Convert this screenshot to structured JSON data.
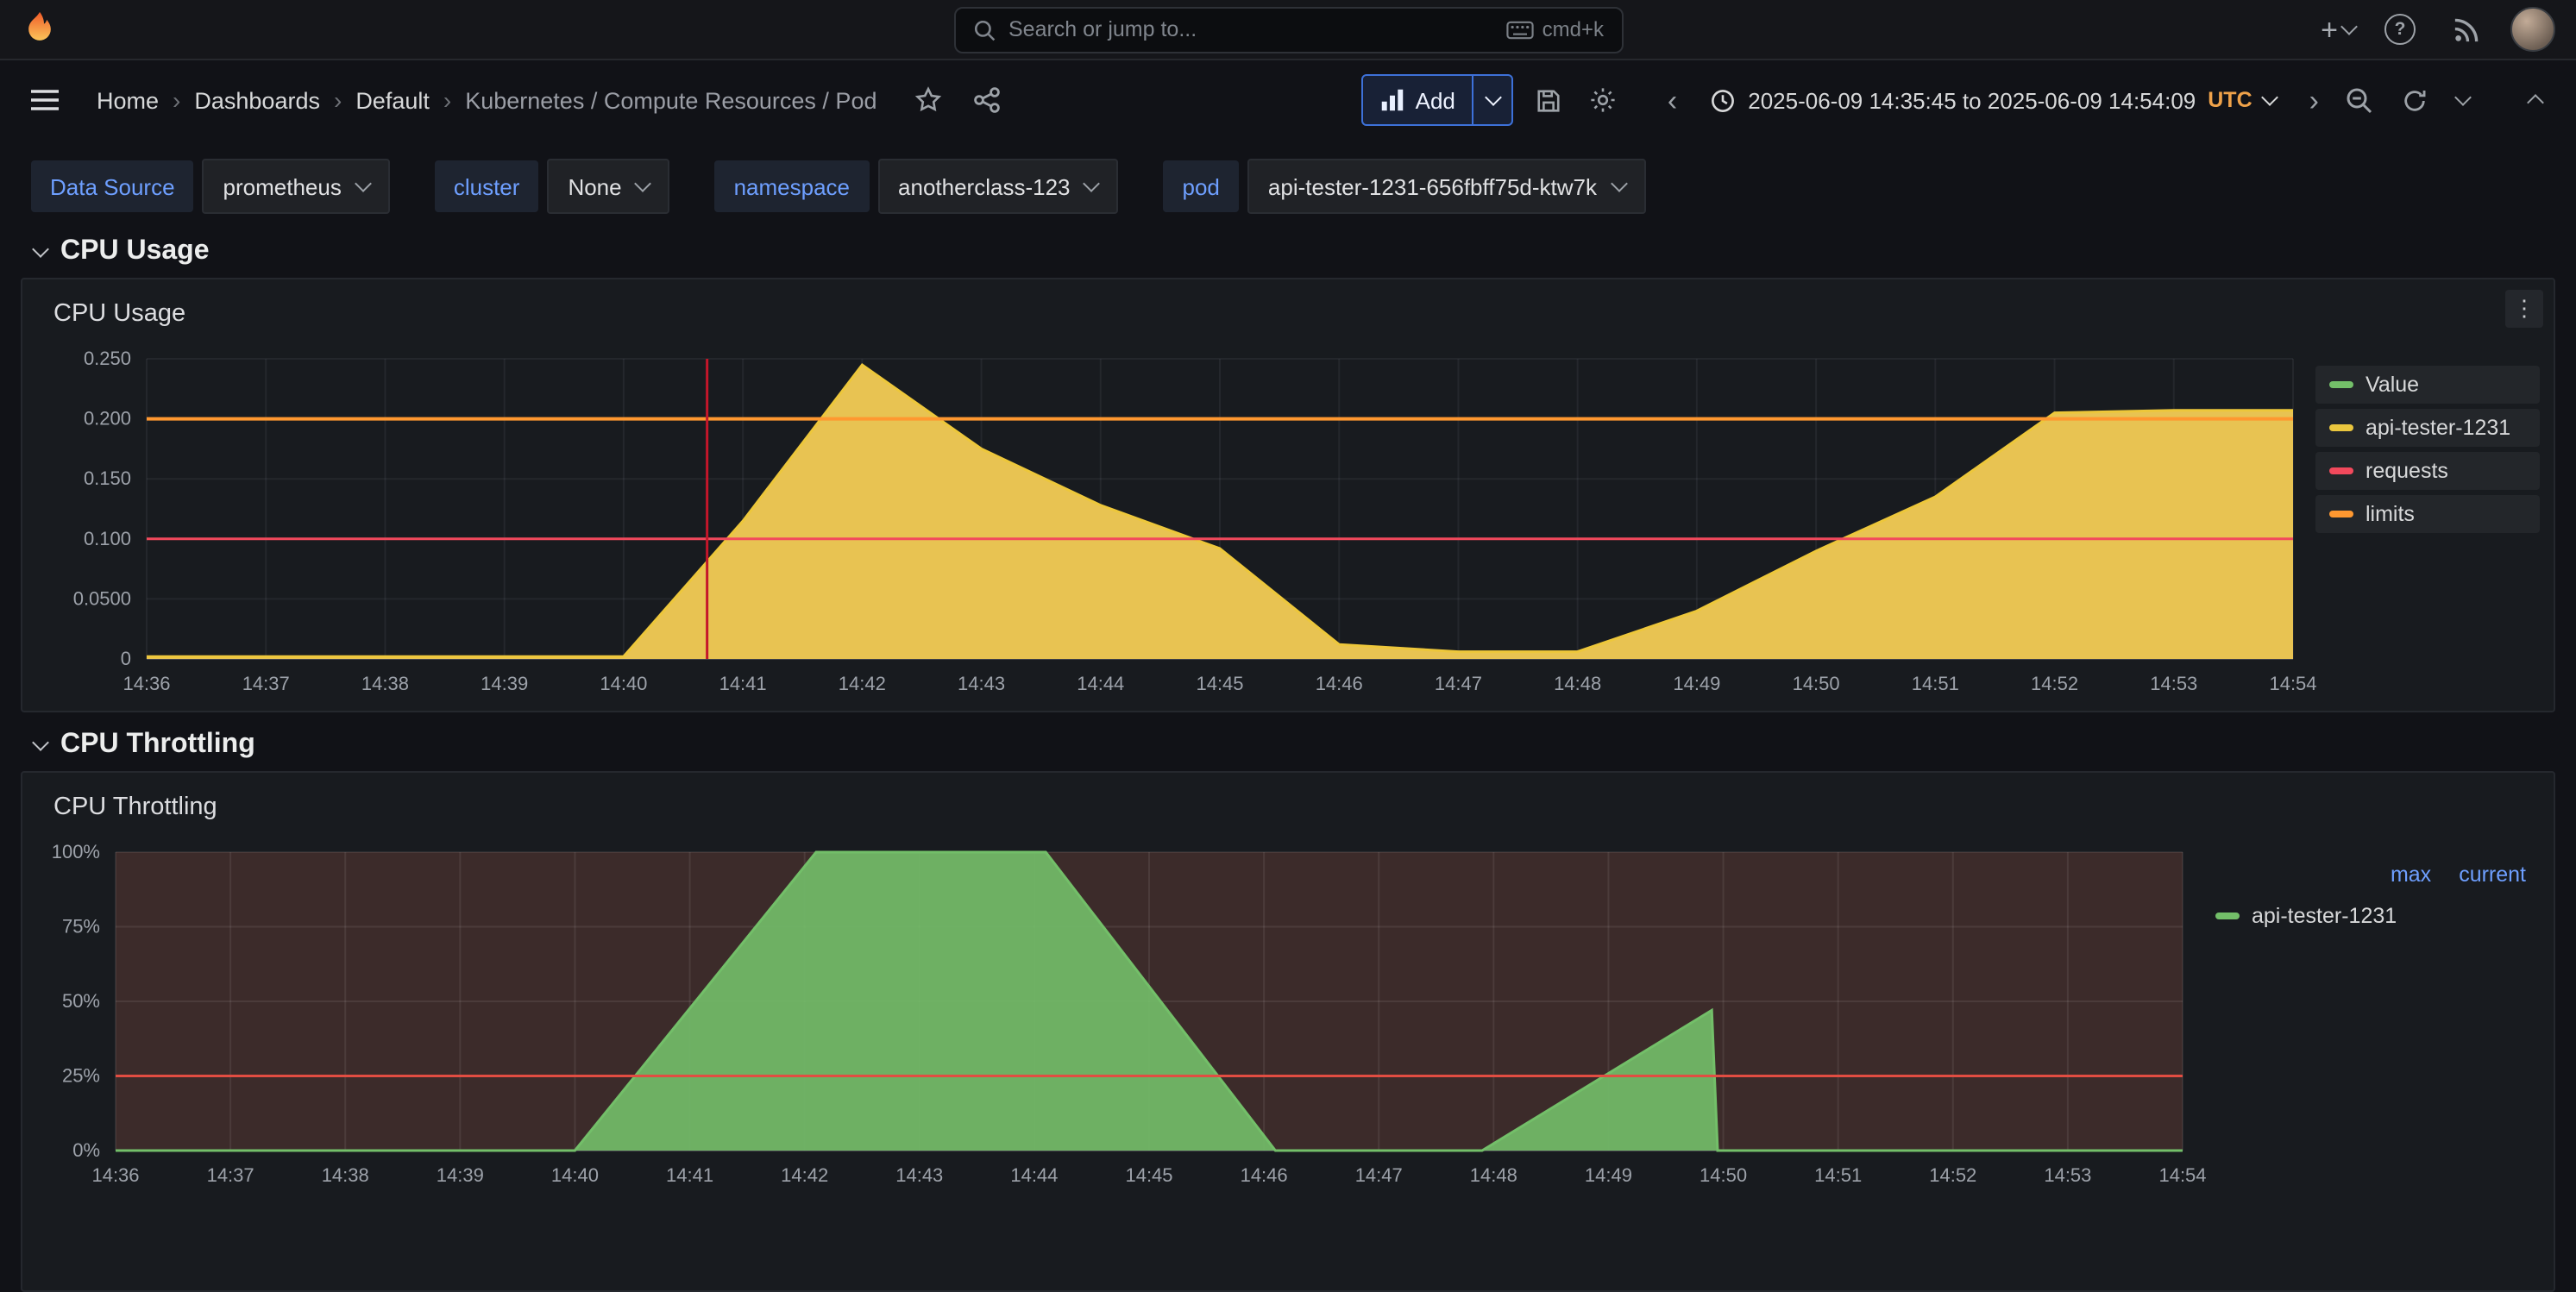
{
  "topbar": {
    "search_placeholder": "Search or jump to...",
    "search_shortcut": "cmd+k"
  },
  "breadcrumb": {
    "items": [
      "Home",
      "Dashboards",
      "Default",
      "Kubernetes / Compute Resources / Pod"
    ]
  },
  "toolbar": {
    "add_label": "Add",
    "time_range": "2025-06-09 14:35:45 to 2025-06-09 14:54:09",
    "timezone": "UTC"
  },
  "filters": [
    {
      "label": "Data Source",
      "value": "prometheus"
    },
    {
      "label": "cluster",
      "value": "None"
    },
    {
      "label": "namespace",
      "value": "anotherclass-123"
    },
    {
      "label": "pod",
      "value": "api-tester-1231-656fbff75d-ktw7k"
    }
  ],
  "sections": [
    {
      "title": "CPU Usage"
    },
    {
      "title": "CPU Throttling"
    }
  ],
  "panels": [
    {
      "title": "CPU Usage",
      "legend": [
        {
          "label": "Value",
          "color": "#73bf69"
        },
        {
          "label": "api-tester-1231",
          "color": "#eac63e"
        },
        {
          "label": "requests",
          "color": "#f2495c"
        },
        {
          "label": "limits",
          "color": "#ff9830"
        }
      ]
    },
    {
      "title": "CPU Throttling",
      "legend_headers": [
        "max",
        "current"
      ],
      "legend": [
        {
          "label": "api-tester-1231",
          "color": "#73bf69"
        }
      ]
    }
  ],
  "colors": {
    "accent_blue": "#6e9fff",
    "add_button_border": "#3d71d9",
    "series_yellow": "#eac63e",
    "series_green": "#73bf69",
    "requests_red": "#f2495c",
    "limits_orange": "#ff9830",
    "annotation_red": "#c4162a",
    "throttle_threshold": "#e24d42",
    "throttle_plot_bg": "#3c2b2a",
    "panel_bg": "#181b1f",
    "page_bg": "#111217"
  },
  "chart_data": [
    {
      "type": "area",
      "title": "CPU Usage",
      "x_ticks": [
        "14:36",
        "14:37",
        "14:38",
        "14:39",
        "14:40",
        "14:41",
        "14:42",
        "14:43",
        "14:44",
        "14:45",
        "14:46",
        "14:47",
        "14:48",
        "14:49",
        "14:50",
        "14:51",
        "14:52",
        "14:53",
        "14:54"
      ],
      "x_tick_values": [
        36,
        37,
        38,
        39,
        40,
        41,
        42,
        43,
        44,
        45,
        46,
        47,
        48,
        49,
        50,
        51,
        52,
        53,
        54
      ],
      "x_range": [
        36,
        54
      ],
      "y_range": [
        0,
        0.25
      ],
      "y_ticks": [
        {
          "v": 0,
          "label": "0"
        },
        {
          "v": 0.05,
          "label": "0.0500"
        },
        {
          "v": 0.1,
          "label": "0.100"
        },
        {
          "v": 0.15,
          "label": "0.150"
        },
        {
          "v": 0.2,
          "label": "0.200"
        },
        {
          "v": 0.25,
          "label": "0.250"
        }
      ],
      "grid": true,
      "grid_color": "rgba(204,204,220,0.07)",
      "legend_position": "right",
      "series": [
        {
          "name": "api-tester-1231",
          "kind": "area",
          "color": "#edc73b",
          "fill": "#e8c352",
          "fill_opacity": 1,
          "points": [
            [
              36,
              0.002
            ],
            [
              39,
              0.002
            ],
            [
              40,
              0.002
            ],
            [
              41,
              0.115
            ],
            [
              42,
              0.245
            ],
            [
              43,
              0.175
            ],
            [
              44,
              0.128
            ],
            [
              45,
              0.092
            ],
            [
              46,
              0.012
            ],
            [
              47,
              0.006
            ],
            [
              48,
              0.006
            ],
            [
              49,
              0.04
            ],
            [
              50,
              0.09
            ],
            [
              51,
              0.135
            ],
            [
              52,
              0.205
            ],
            [
              53,
              0.207
            ],
            [
              54,
              0.207
            ]
          ]
        },
        {
          "name": "requests",
          "kind": "hline",
          "color": "#f2495c",
          "y": 0.1,
          "width": 1.5
        },
        {
          "name": "limits",
          "kind": "hline",
          "color": "#ff9830",
          "y": 0.2,
          "width": 2
        }
      ],
      "annotations": [
        {
          "kind": "vline",
          "x": 40.7,
          "color": "#c4162a",
          "width": 1.5
        }
      ]
    },
    {
      "type": "area",
      "title": "CPU Throttling",
      "x_ticks": [
        "14:36",
        "14:37",
        "14:38",
        "14:39",
        "14:40",
        "14:41",
        "14:42",
        "14:43",
        "14:44",
        "14:45",
        "14:46",
        "14:47",
        "14:48",
        "14:49",
        "14:50",
        "14:51",
        "14:52",
        "14:53",
        "14:54"
      ],
      "x_tick_values": [
        36,
        37,
        38,
        39,
        40,
        41,
        42,
        43,
        44,
        45,
        46,
        47,
        48,
        49,
        50,
        51,
        52,
        53,
        54
      ],
      "x_range": [
        36,
        54
      ],
      "y_range": [
        0,
        100
      ],
      "y_ticks": [
        {
          "v": 0,
          "label": "0%"
        },
        {
          "v": 25,
          "label": "25%"
        },
        {
          "v": 50,
          "label": "50%"
        },
        {
          "v": 75,
          "label": "75%"
        },
        {
          "v": 100,
          "label": "100%"
        }
      ],
      "grid": true,
      "grid_color": "rgba(255,255,255,0.08)",
      "plot_bg": "#3c2b2a",
      "legend_position": "right",
      "series": [
        {
          "name": "api-tester-1231",
          "kind": "area",
          "color": "#73bf69",
          "fill": "#73bf69",
          "fill_opacity": 0.9,
          "points": [
            [
              36,
              0
            ],
            [
              40,
              0
            ],
            [
              42.1,
              100
            ],
            [
              44.1,
              100
            ],
            [
              46.1,
              0
            ],
            [
              47.9,
              0
            ],
            [
              49.9,
              47
            ],
            [
              49.95,
              0
            ],
            [
              54,
              0
            ]
          ]
        },
        {
          "name": "threshold",
          "kind": "hline",
          "color": "#e24d42",
          "y": 25,
          "width": 1.5
        }
      ]
    }
  ]
}
